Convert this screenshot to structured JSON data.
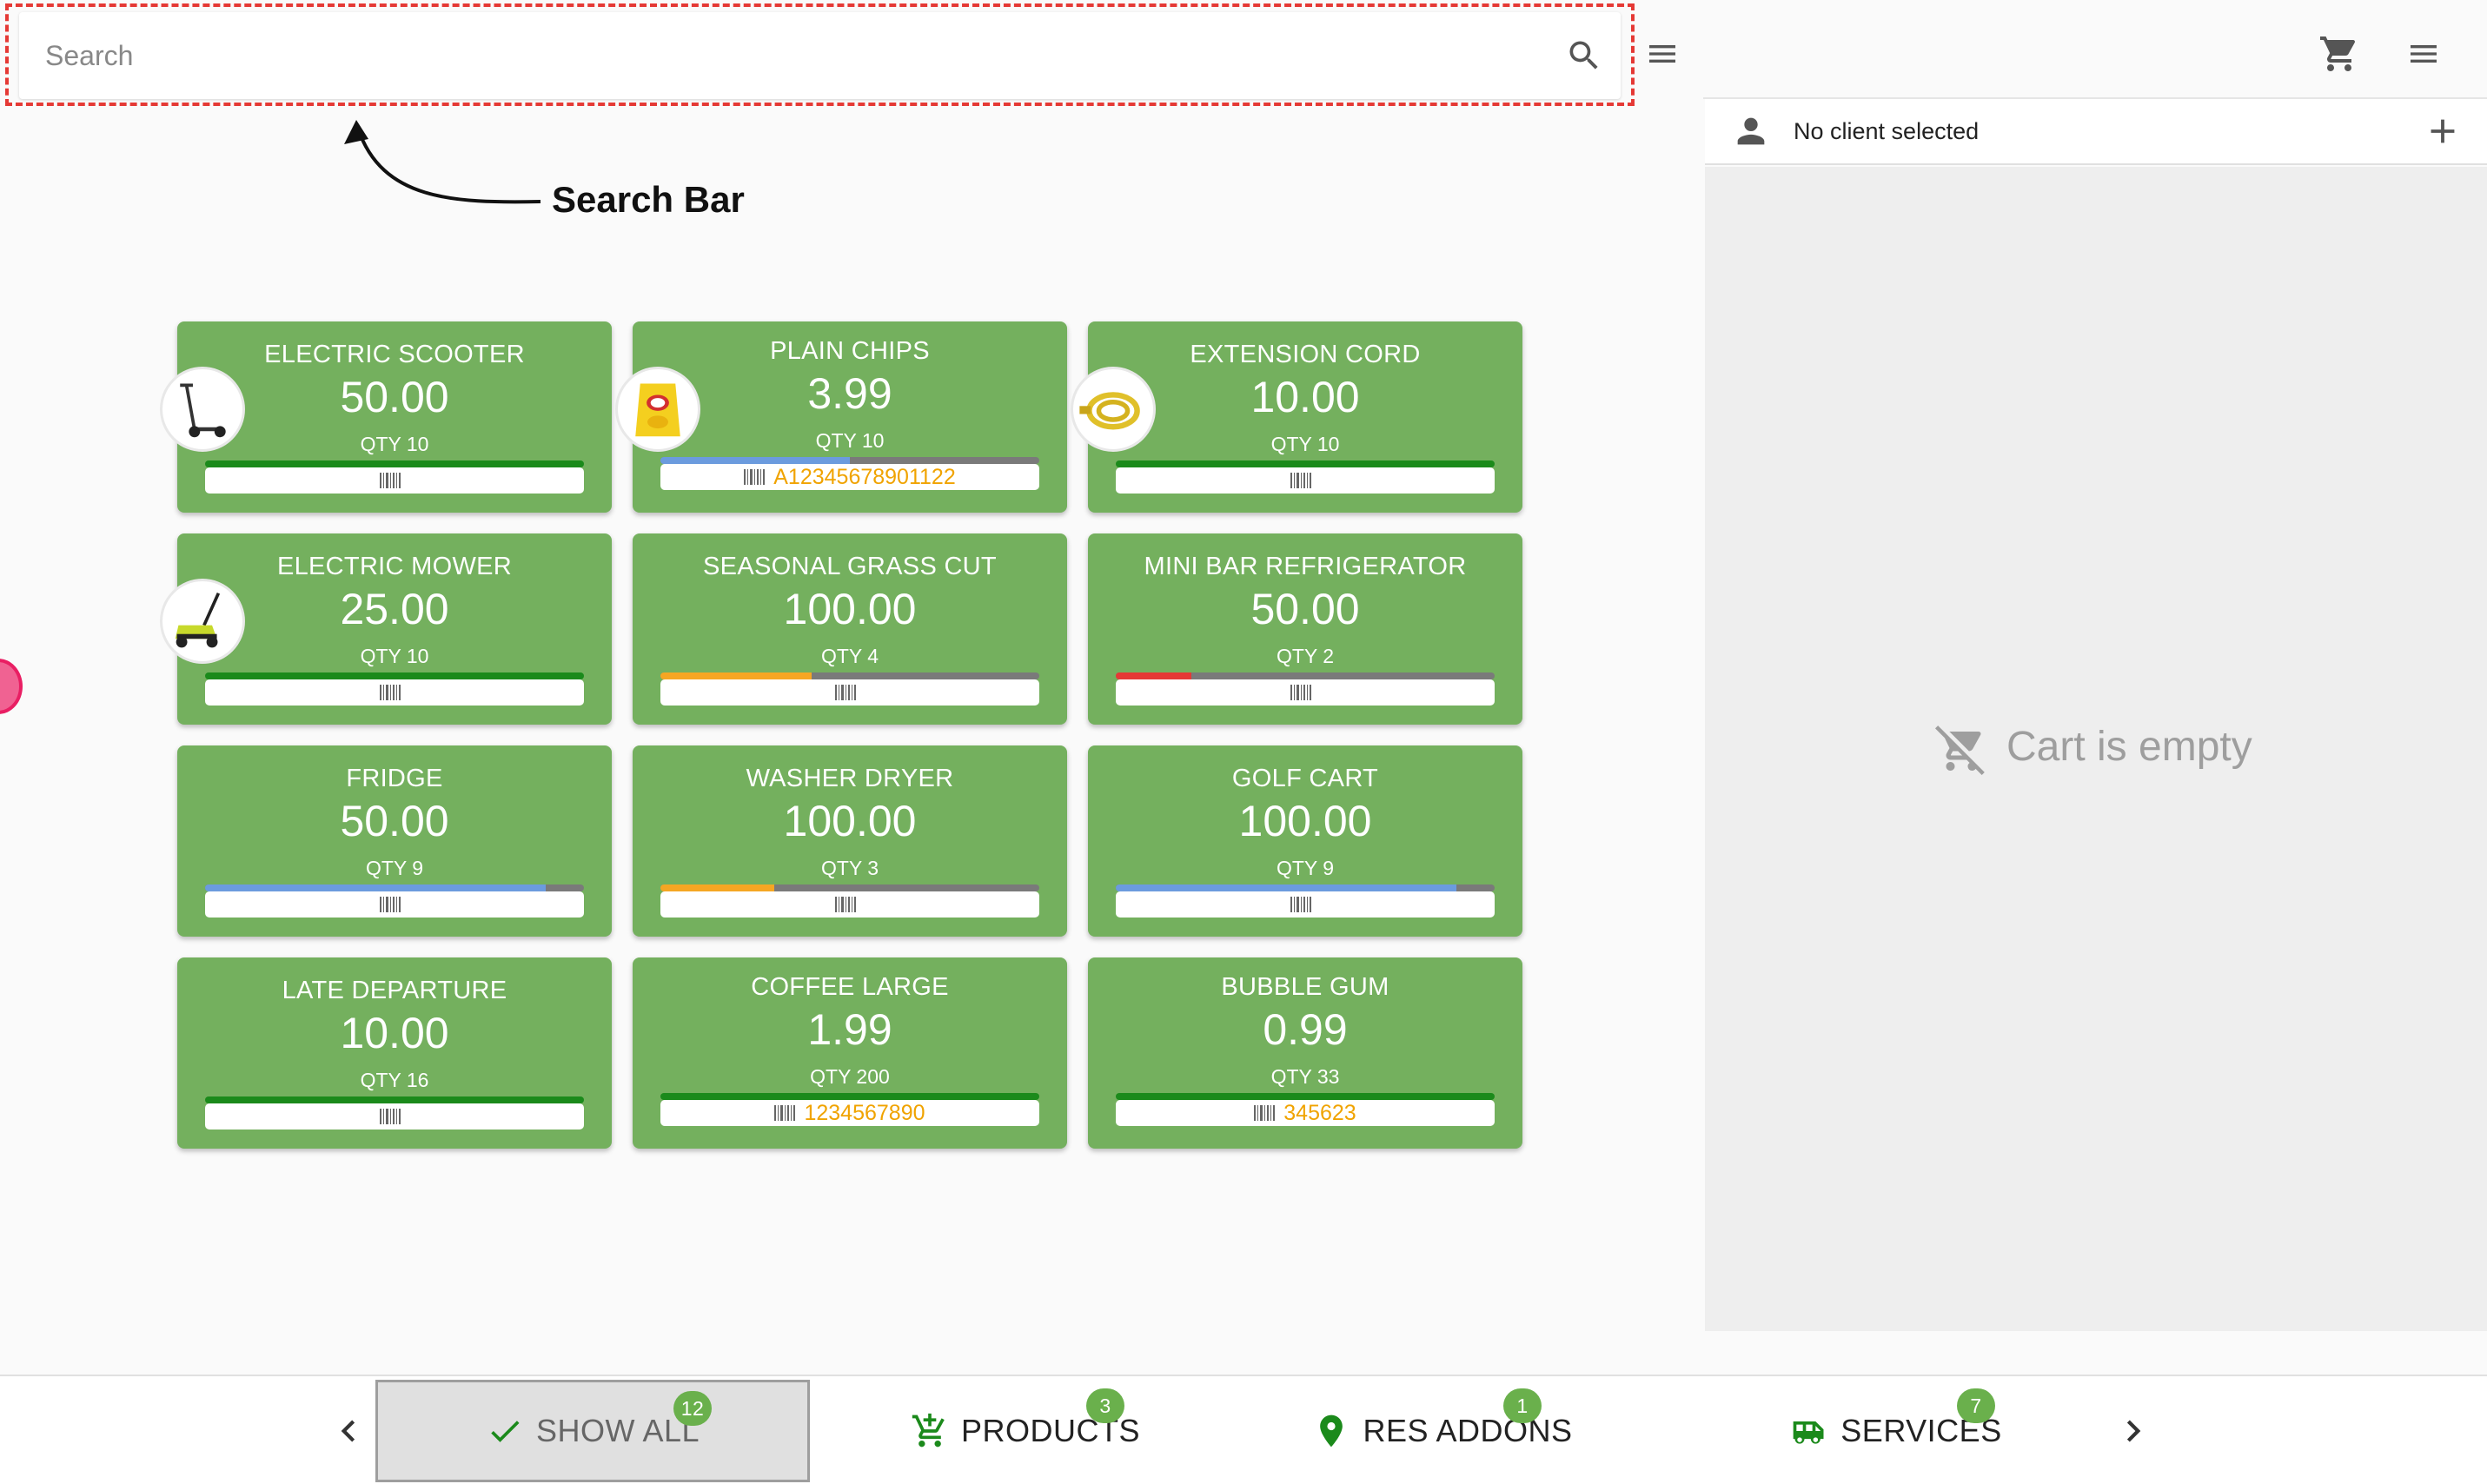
{
  "search": {
    "placeholder": "Search"
  },
  "annotation": {
    "label": "Search Bar"
  },
  "client": {
    "label": "No client selected"
  },
  "cart": {
    "empty_label": "Cart is empty"
  },
  "products": [
    {
      "name": "ELECTRIC SCOOTER",
      "price": "50.00",
      "qty": "QTY 10",
      "barcode": "",
      "stock_fraction": 1.0,
      "bar_color": "#1b8a1b",
      "thumb": "scooter"
    },
    {
      "name": "PLAIN CHIPS",
      "price": "3.99",
      "qty": "QTY 10",
      "barcode": "A12345678901122",
      "stock_fraction": 0.5,
      "bar_color": "#6b9bde",
      "thumb": "chips"
    },
    {
      "name": "EXTENSION CORD",
      "price": "10.00",
      "qty": "QTY 10",
      "barcode": "",
      "stock_fraction": 1.0,
      "bar_color": "#1b8a1b",
      "thumb": "cord"
    },
    {
      "name": "ELECTRIC MOWER",
      "price": "25.00",
      "qty": "QTY 10",
      "barcode": "",
      "stock_fraction": 1.0,
      "bar_color": "#1b8a1b",
      "thumb": "mower"
    },
    {
      "name": "SEASONAL GRASS CUT",
      "price": "100.00",
      "qty": "QTY 4",
      "barcode": "",
      "stock_fraction": 0.4,
      "bar_color": "#f5a623",
      "thumb": ""
    },
    {
      "name": "MINI BAR REFRIGERATOR",
      "price": "50.00",
      "qty": "QTY 2",
      "barcode": "",
      "stock_fraction": 0.2,
      "bar_color": "#e53935",
      "thumb": ""
    },
    {
      "name": "FRIDGE",
      "price": "50.00",
      "qty": "QTY 9",
      "barcode": "",
      "stock_fraction": 0.9,
      "bar_color": "#6b9bde",
      "thumb": ""
    },
    {
      "name": "WASHER DRYER",
      "price": "100.00",
      "qty": "QTY 3",
      "barcode": "",
      "stock_fraction": 0.3,
      "bar_color": "#f5a623",
      "thumb": ""
    },
    {
      "name": "GOLF CART",
      "price": "100.00",
      "qty": "QTY 9",
      "barcode": "",
      "stock_fraction": 0.9,
      "bar_color": "#6b9bde",
      "thumb": ""
    },
    {
      "name": "LATE DEPARTURE",
      "price": "10.00",
      "qty": "QTY 16",
      "barcode": "",
      "stock_fraction": 1.0,
      "bar_color": "#1b8a1b",
      "thumb": ""
    },
    {
      "name": "COFFEE LARGE",
      "price": "1.99",
      "qty": "QTY 200",
      "barcode": "1234567890",
      "stock_fraction": 1.0,
      "bar_color": "#1b8a1b",
      "thumb": ""
    },
    {
      "name": "BUBBLE GUM",
      "price": "0.99",
      "qty": "QTY 33",
      "barcode": "345623",
      "stock_fraction": 1.0,
      "bar_color": "#1b8a1b",
      "thumb": ""
    }
  ],
  "tabs": [
    {
      "label": "SHOW ALL",
      "count": "12",
      "icon": "check-icon",
      "active": true
    },
    {
      "label": "PRODUCTS",
      "count": "3",
      "icon": "add-cart-icon",
      "active": false
    },
    {
      "label": "RES ADDONS",
      "count": "1",
      "icon": "location-pin-icon",
      "active": false
    },
    {
      "label": "SERVICES",
      "count": "7",
      "icon": "camper-icon",
      "active": false
    }
  ],
  "colors": {
    "tile": "#74b05e",
    "badge": "#6ab04c",
    "barcode_text": "#f0a300",
    "annotation": "#e53935"
  }
}
